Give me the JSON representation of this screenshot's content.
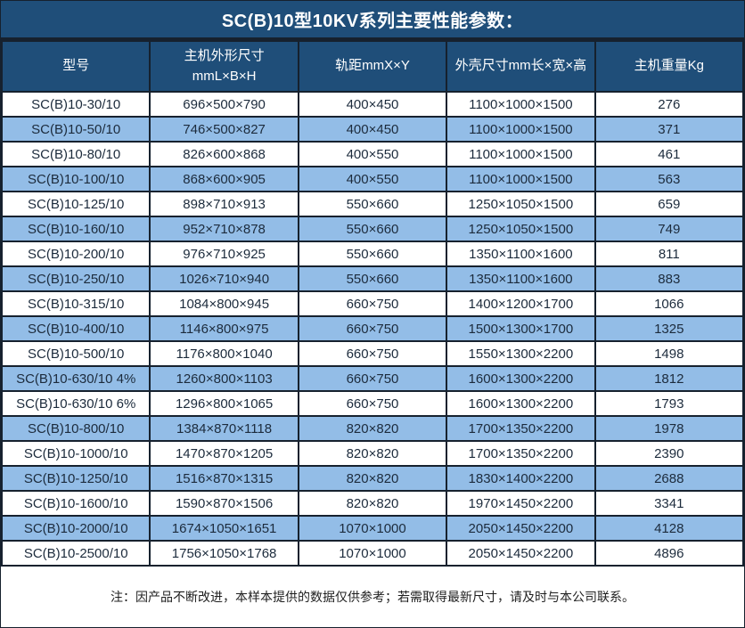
{
  "title": "SC(B)10型10KV系列主要性能参数：",
  "note": "注：因产品不断改进，本样本提供的数据仅供参考；若需取得最新尺寸，请及时与本公司联系。",
  "colors": {
    "header_bg": "#1F4E79",
    "alt_row_bg": "#93BDE7",
    "border": "#16212E",
    "header_text": "#FFFFFF",
    "cell_text": "#1C2B3C"
  },
  "table": {
    "columns": [
      {
        "key": "model",
        "label": "型号"
      },
      {
        "key": "main-dimensions",
        "label": "主机外形尺寸\nmmL×B×H"
      },
      {
        "key": "rail-gauge",
        "label": "轨距mmX×Y"
      },
      {
        "key": "shell-dimensions",
        "label": "外壳尺寸mm长×宽×高"
      },
      {
        "key": "weight",
        "label": "主机重量Kg"
      }
    ],
    "rows": [
      [
        "SC(B)10-30/10",
        "696×500×790",
        "400×450",
        "1100×1000×1500",
        "276"
      ],
      [
        "SC(B)10-50/10",
        "746×500×827",
        "400×450",
        "1100×1000×1500",
        "371"
      ],
      [
        "SC(B)10-80/10",
        "826×600×868",
        "400×550",
        "1100×1000×1500",
        "461"
      ],
      [
        "SC(B)10-100/10",
        "868×600×905",
        "400×550",
        "1100×1000×1500",
        "563"
      ],
      [
        "SC(B)10-125/10",
        "898×710×913",
        "550×660",
        "1250×1050×1500",
        "659"
      ],
      [
        "SC(B)10-160/10",
        "952×710×878",
        "550×660",
        "1250×1050×1500",
        "749"
      ],
      [
        "SC(B)10-200/10",
        "976×710×925",
        "550×660",
        "1350×1100×1600",
        "811"
      ],
      [
        "SC(B)10-250/10",
        "1026×710×940",
        "550×660",
        "1350×1100×1600",
        "883"
      ],
      [
        "SC(B)10-315/10",
        "1084×800×945",
        "660×750",
        "1400×1200×1700",
        "1066"
      ],
      [
        "SC(B)10-400/10",
        "1146×800×975",
        "660×750",
        "1500×1300×1700",
        "1325"
      ],
      [
        "SC(B)10-500/10",
        "1176×800×1040",
        "660×750",
        "1550×1300×2200",
        "1498"
      ],
      [
        "SC(B)10-630/10 4%",
        "1260×800×1103",
        "660×750",
        "1600×1300×2200",
        "1812"
      ],
      [
        "SC(B)10-630/10 6%",
        "1296×800×1065",
        "660×750",
        "1600×1300×2200",
        "1793"
      ],
      [
        "SC(B)10-800/10",
        "1384×870×1118",
        "820×820",
        "1700×1350×2200",
        "1978"
      ],
      [
        "SC(B)10-1000/10",
        "1470×870×1205",
        "820×820",
        "1700×1350×2200",
        "2390"
      ],
      [
        "SC(B)10-1250/10",
        "1516×870×1315",
        "820×820",
        "1830×1400×2200",
        "2688"
      ],
      [
        "SC(B)10-1600/10",
        "1590×870×1506",
        "820×820",
        "1970×1450×2200",
        "3341"
      ],
      [
        "SC(B)10-2000/10",
        "1674×1050×1651",
        "1070×1000",
        "2050×1450×2200",
        "4128"
      ],
      [
        "SC(B)10-2500/10",
        "1756×1050×1768",
        "1070×1000",
        "2050×1450×2200",
        "4896"
      ]
    ]
  }
}
